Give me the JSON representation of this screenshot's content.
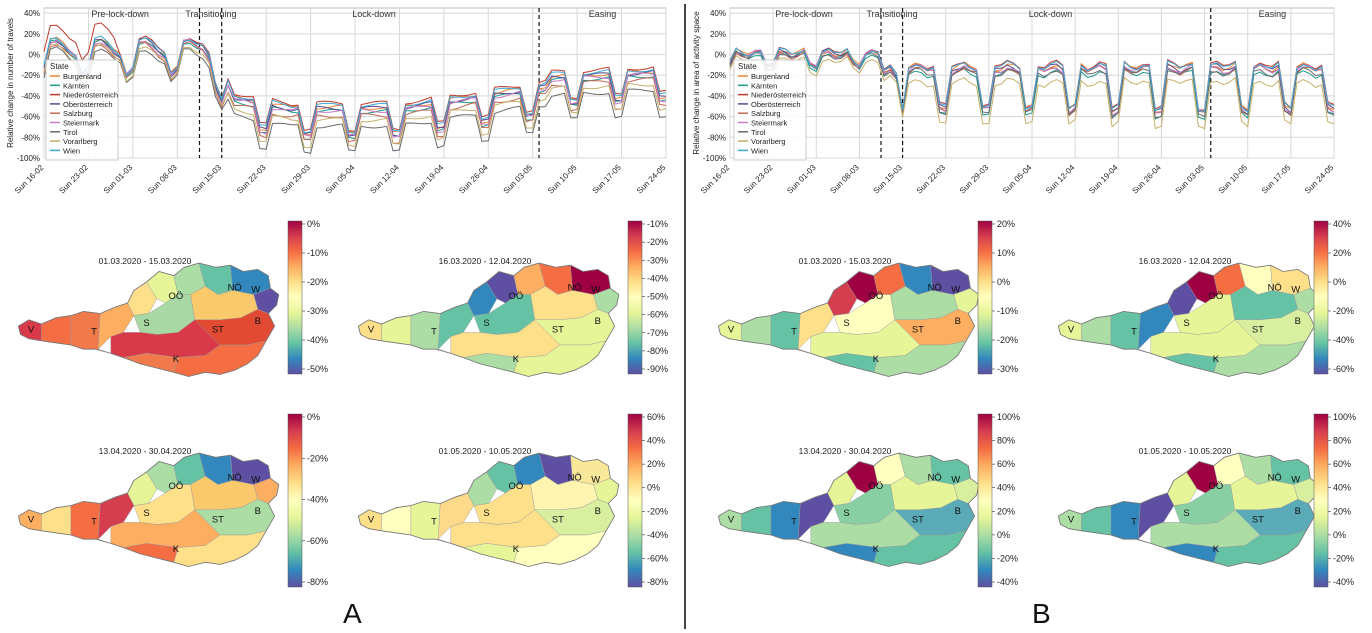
{
  "panels": {
    "A_label": "A",
    "B_label": "B"
  },
  "colors": {
    "Burgenland": "#e8873a",
    "Kärnten": "#1f9a8a",
    "Niederösterreich": "#c0392b",
    "Oberösterreich": "#5b4a8b",
    "Salzburg": "#c06a5a",
    "Steiermark": "#c77dc4",
    "Tirol": "#6b6b6b",
    "Vorarlberg": "#c8b06a",
    "Wien": "#3fa9d6"
  },
  "map_labels": [
    "V",
    "T",
    "S",
    "K",
    "ST",
    "OÖ",
    "NÖ",
    "W",
    "B"
  ],
  "chart_data": [
    {
      "id": "A-line",
      "type": "line",
      "ylabel": "Relative change in number of travels",
      "yticks": [
        "40%",
        "20%",
        "0%",
        "-20%",
        "-40%",
        "-60%",
        "-80%",
        "-100%"
      ],
      "ylim": [
        -100,
        45
      ],
      "xticks": [
        "Sun 16-02",
        "Sun 23-02",
        "Sun 01-03",
        "Sun 08-03",
        "Sun 15-03",
        "Sun 22-03",
        "Sun 29-03",
        "Sun 05-04",
        "Sun 12-04",
        "Sun 19-04",
        "Sun 26-04",
        "Sun 03-05",
        "Sun 10-05",
        "Sun 17-05",
        "Sun 24-05"
      ],
      "phases": [
        "Pre-lock-down",
        "Transitioning",
        "Lock-down",
        "Easing"
      ],
      "legend_title": "State",
      "grid": true,
      "series": [
        {
          "name": "Burgenland",
          "offset": 4
        },
        {
          "name": "Kärnten",
          "offset": 0
        },
        {
          "name": "Niederösterreich",
          "offset": 8
        },
        {
          "name": "Oberösterreich",
          "offset": 3
        },
        {
          "name": "Salzburg",
          "offset": -4
        },
        {
          "name": "Steiermark",
          "offset": 1
        },
        {
          "name": "Tirol",
          "offset": -14
        },
        {
          "name": "Vorarlberg",
          "offset": -8
        },
        {
          "name": "Wien",
          "offset": 6
        }
      ]
    },
    {
      "id": "B-line",
      "type": "line",
      "ylabel": "Relative change in area of activity space",
      "yticks": [
        "40%",
        "20%",
        "0%",
        "-20%",
        "-40%",
        "-60%",
        "-80%",
        "-100%"
      ],
      "ylim": [
        -100,
        45
      ],
      "xticks": [
        "Sun 16-02",
        "Sun 23-02",
        "Sun 01-03",
        "Sun 08-03",
        "Sun 15-03",
        "Sun 22-03",
        "Sun 29-03",
        "Sun 05-04",
        "Sun 12-04",
        "Sun 19-04",
        "Sun 26-04",
        "Sun 03-05",
        "Sun 10-05",
        "Sun 17-05",
        "Sun 24-05"
      ],
      "phases": [
        "Pre-lock-down",
        "Transitioning",
        "Lock-down",
        "Easing"
      ],
      "legend_title": "State",
      "grid": true,
      "series": [
        {
          "name": "Burgenland",
          "offset": 3
        },
        {
          "name": "Kärnten",
          "offset": -3
        },
        {
          "name": "Niederösterreich",
          "offset": 5
        },
        {
          "name": "Oberösterreich",
          "offset": 2
        },
        {
          "name": "Salzburg",
          "offset": 0
        },
        {
          "name": "Steiermark",
          "offset": 1
        },
        {
          "name": "Tirol",
          "offset": -2
        },
        {
          "name": "Vorarlberg",
          "offset": -12
        },
        {
          "name": "Wien",
          "offset": 4
        }
      ]
    },
    {
      "id": "A-map-1",
      "type": "heatmap",
      "title": "01.03.2020 - 15.03.2020",
      "colorbar_ticks": [
        "0%",
        "-10%",
        "-20%",
        "-30%",
        "-40%",
        "-50%"
      ],
      "palette": [
        "#d93a4a",
        "#f46d43",
        "#f07a4b",
        "#fdae61",
        "#fee08b",
        "#e6f598",
        "#abdda4",
        "#66c2a5",
        "#3288bd",
        "#5e4fa2",
        "#a8d8a3",
        "#f9c96b",
        "#e34a33"
      ]
    },
    {
      "id": "A-map-2",
      "type": "heatmap",
      "title": "16.03.2020 - 12.04.2020",
      "colorbar_ticks": [
        "-10%",
        "-20%",
        "-30%",
        "-40%",
        "-50%",
        "-60%",
        "-70%",
        "-80%",
        "-90%"
      ],
      "palette": [
        "#fee08b",
        "#e6f598",
        "#abdda4",
        "#66c2a5",
        "#3288bd",
        "#5e4fa2",
        "#fdae61",
        "#f46d43",
        "#9e0142",
        "#abdda4",
        "#66c2a5",
        "#fee08b",
        "#e6f598"
      ]
    },
    {
      "id": "A-map-3",
      "type": "heatmap",
      "title": "13.04.2020 - 30.04.2020",
      "colorbar_ticks": [
        "0%",
        "-20%",
        "-40%",
        "-60%",
        "-80%"
      ],
      "palette": [
        "#fdae61",
        "#fee08b",
        "#f46d43",
        "#d53e4f",
        "#e6f598",
        "#abdda4",
        "#66c2a5",
        "#3288bd",
        "#5e4fa2",
        "#fdae61",
        "#fee08b",
        "#f9c96b",
        "#abdda4"
      ]
    },
    {
      "id": "A-map-4",
      "type": "heatmap",
      "title": "01.05.2020 - 10.05.2020",
      "colorbar_ticks": [
        "60%",
        "40%",
        "20%",
        "0%",
        "-20%",
        "-40%",
        "-60%",
        "-80%"
      ],
      "palette": [
        "#fee08b",
        "#ffffbf",
        "#e6f598",
        "#fdd98b",
        "#abdda4",
        "#66c2a5",
        "#3288bd",
        "#5e4fa2",
        "#f9e79a",
        "#e6f598",
        "#fee08b",
        "#fff5b0",
        "#d8efa0"
      ]
    },
    {
      "id": "B-map-1",
      "type": "heatmap",
      "title": "01.03.2020 - 15.03.2020",
      "colorbar_ticks": [
        "20%",
        "10%",
        "0%",
        "-10%",
        "-20%",
        "-30%"
      ],
      "palette": [
        "#e6f598",
        "#abdda4",
        "#66c2a5",
        "#fee08b",
        "#d53e4f",
        "#9e0142",
        "#f46d43",
        "#3288bd",
        "#5e4fa2",
        "#e6f598",
        "#ffffbf",
        "#abdda4",
        "#fdae61"
      ]
    },
    {
      "id": "B-map-2",
      "type": "heatmap",
      "title": "16.03.2020 - 12.04.2020",
      "colorbar_ticks": [
        "40%",
        "20%",
        "0%",
        "-20%",
        "-40%",
        "-60%"
      ],
      "palette": [
        "#e6f598",
        "#abdda4",
        "#66c2a5",
        "#3288bd",
        "#5e4fa2",
        "#9e0142",
        "#f46d43",
        "#ffffbf",
        "#fee08b",
        "#abdda4",
        "#e6f598",
        "#66c2a5",
        "#d8efa0"
      ]
    },
    {
      "id": "B-map-3",
      "type": "heatmap",
      "title": "13.04.2020 - 30.04.2020",
      "colorbar_ticks": [
        "100%",
        "80%",
        "60%",
        "40%",
        "20%",
        "0%",
        "-20%",
        "-40%"
      ],
      "palette": [
        "#abdda4",
        "#66c2a5",
        "#3288bd",
        "#5e4fa2",
        "#e6f598",
        "#9e0142",
        "#ffffbf",
        "#abdda4",
        "#66c2a5",
        "#d8efa0",
        "#88cfa4",
        "#e6f598",
        "#5aaab8"
      ]
    },
    {
      "id": "B-map-4",
      "type": "heatmap",
      "title": "01.05.2020 - 10.05.2020",
      "colorbar_ticks": [
        "100%",
        "80%",
        "60%",
        "40%",
        "20%",
        "0%",
        "-20%",
        "-40%"
      ],
      "palette": [
        "#abdda4",
        "#66c2a5",
        "#3288bd",
        "#5e4fa2",
        "#e6f598",
        "#9e0142",
        "#ffffbf",
        "#abdda4",
        "#66c2a5",
        "#d8efa0",
        "#88cfa4",
        "#e6f598",
        "#5aaab8"
      ]
    }
  ]
}
